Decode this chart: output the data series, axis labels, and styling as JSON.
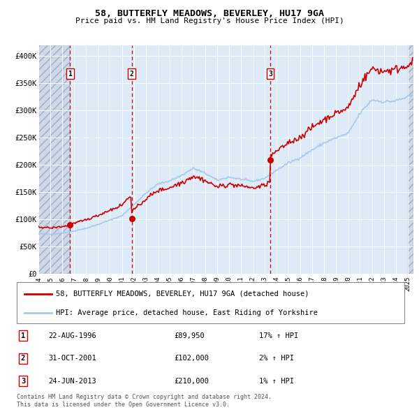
{
  "title": "58, BUTTERFLY MEADOWS, BEVERLEY, HU17 9GA",
  "subtitle": "Price paid vs. HM Land Registry's House Price Index (HPI)",
  "hpi_color": "#a8c8e8",
  "price_color": "#cc0000",
  "vline_color": "#cc0000",
  "bg_plot": "#ddeaf7",
  "bg_hatch": "#cddaec",
  "ylim": [
    0,
    420000
  ],
  "yticks": [
    0,
    50000,
    100000,
    150000,
    200000,
    250000,
    300000,
    350000,
    400000
  ],
  "ytick_labels": [
    "£0",
    "£50K",
    "£100K",
    "£150K",
    "£200K",
    "£250K",
    "£300K",
    "£350K",
    "£400K"
  ],
  "transactions": [
    {
      "num": 1,
      "date_str": "22-AUG-1996",
      "date_x": 1996.64,
      "price": 89950,
      "pct": "17%",
      "dir": "↑"
    },
    {
      "num": 2,
      "date_str": "31-OCT-2001",
      "date_x": 2001.83,
      "price": 102000,
      "pct": "2%",
      "dir": "↑"
    },
    {
      "num": 3,
      "date_str": "24-JUN-2013",
      "date_x": 2013.47,
      "price": 210000,
      "pct": "1%",
      "dir": "↑"
    }
  ],
  "legend_label_price": "58, BUTTERFLY MEADOWS, BEVERLEY, HU17 9GA (detached house)",
  "legend_label_hpi": "HPI: Average price, detached house, East Riding of Yorkshire",
  "footnote1": "Contains HM Land Registry data © Crown copyright and database right 2024.",
  "footnote2": "This data is licensed under the Open Government Licence v3.0.",
  "xlim": [
    1994.0,
    2025.5
  ],
  "xticks": [
    1994,
    1995,
    1996,
    1997,
    1998,
    1999,
    2000,
    2001,
    2002,
    2003,
    2004,
    2005,
    2006,
    2007,
    2008,
    2009,
    2010,
    2011,
    2012,
    2013,
    2014,
    2015,
    2016,
    2017,
    2018,
    2019,
    2020,
    2021,
    2022,
    2023,
    2024,
    2025
  ]
}
